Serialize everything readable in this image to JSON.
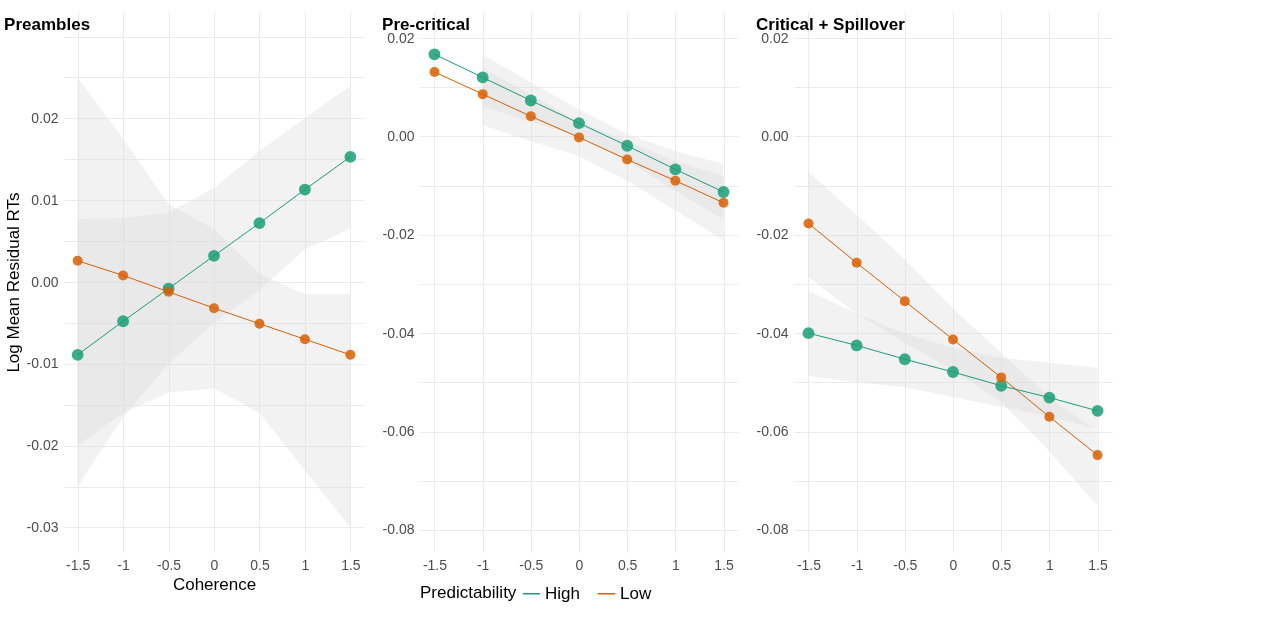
{
  "chart_data": [
    {
      "type": "line",
      "title": "Preambles",
      "xlabel": "Coherence",
      "ylabel": "Log Mean Residual RTs",
      "marker": "circle",
      "grid": true,
      "x": [
        -1.5,
        -1,
        -0.5,
        0,
        0.5,
        1,
        1.5
      ],
      "xlim": [
        -1.65,
        1.65
      ],
      "xticks": [
        -1.5,
        -1,
        -0.5,
        0,
        0.5,
        1,
        1.5
      ],
      "ylim": [
        -0.033,
        0.033
      ],
      "yticks": [
        -0.03,
        {
          "value": -0.025,
          "label": null
        },
        -0.02,
        {
          "value": -0.015,
          "label": null
        },
        -0.01,
        {
          "value": -0.005,
          "label": null
        },
        {
          "value": 0,
          "label": "0.00"
        },
        {
          "value": 0.005,
          "label": null
        },
        0.01,
        {
          "value": 0.015,
          "label": null
        },
        0.02,
        {
          "value": 0.025,
          "label": null
        },
        {
          "value": 0.03,
          "label": null
        }
      ],
      "series": [
        {
          "color": "#1b9e77",
          "values": [
            -0.0089,
            -0.0048,
            -0.0008,
            0.0032,
            0.0072,
            0.0113,
            0.0153
          ],
          "lower": [
            -0.025,
            -0.0165,
            -0.01,
            -0.005,
            -0.001,
            0.004,
            0.0065
          ],
          "upper": [
            0.0077,
            0.0078,
            0.0085,
            0.0115,
            0.016,
            0.02,
            0.024
          ]
        },
        {
          "color": "#d95f02",
          "values": [
            0.0026,
            0.0008,
            -0.0012,
            -0.0032,
            -0.0051,
            -0.007,
            -0.0089
          ],
          "lower": [
            -0.02,
            -0.016,
            -0.0135,
            -0.013,
            -0.016,
            -0.023,
            -0.03
          ],
          "upper": [
            0.025,
            0.0175,
            0.0095,
            0.0065,
            0.001,
            -0.0015,
            -0.0015
          ]
        }
      ]
    },
    {
      "type": "line",
      "title": "Pre-critical",
      "marker": "circle",
      "grid": true,
      "legend": "bottom",
      "legend_title": "Predictability",
      "x": [
        -1.5,
        -1,
        -0.5,
        0,
        0.5,
        1,
        1.5
      ],
      "xlim": [
        -1.65,
        1.65
      ],
      "xticks": [
        -1.5,
        -1,
        -0.5,
        0,
        0.5,
        1,
        1.5
      ],
      "ylim": [
        -0.0845,
        0.0253
      ],
      "yticks": [
        -0.08,
        {
          "value": -0.07,
          "label": null
        },
        -0.06,
        {
          "value": -0.05,
          "label": null
        },
        -0.04,
        {
          "value": -0.03,
          "label": null
        },
        -0.02,
        {
          "value": -0.01,
          "label": null
        },
        {
          "value": 0,
          "label": "0.00"
        },
        {
          "value": 0.01,
          "label": null
        },
        0.02
      ],
      "series": [
        {
          "name": "High",
          "color": "#1b9e77",
          "values": [
            0.0167,
            0.012,
            0.0073,
            0.0027,
            -0.0019,
            -0.0067,
            -0.0113
          ],
          "lower": [
            null,
            0.006,
            0.003,
            0.0,
            -0.005,
            -0.011,
            -0.017
          ],
          "upper": [
            null,
            0.0166,
            0.011,
            0.0055,
            0.0005,
            -0.003,
            -0.0056
          ]
        },
        {
          "name": "Low",
          "color": "#d95f02",
          "values": [
            0.0131,
            0.0086,
            0.0041,
            -0.0002,
            -0.0047,
            -0.009,
            -0.0135
          ],
          "lower": [
            null,
            0.0023,
            -0.001,
            -0.004,
            -0.009,
            -0.015,
            -0.0211
          ],
          "upper": [
            null,
            0.014,
            0.0085,
            0.003,
            -0.001,
            -0.005,
            -0.008
          ]
        }
      ]
    },
    {
      "type": "line",
      "title": "Critical + Spillover",
      "marker": "circle",
      "grid": true,
      "x": [
        -1.5,
        -1,
        -0.5,
        0,
        0.5,
        1,
        1.5
      ],
      "xlim": [
        -1.65,
        1.65
      ],
      "xticks": [
        -1.5,
        -1,
        -0.5,
        0,
        0.5,
        1,
        1.5
      ],
      "ylim": [
        -0.0845,
        0.0253
      ],
      "yticks": [
        -0.08,
        {
          "value": -0.07,
          "label": null
        },
        -0.06,
        {
          "value": -0.05,
          "label": null
        },
        -0.04,
        {
          "value": -0.03,
          "label": null
        },
        -0.02,
        {
          "value": -0.01,
          "label": null
        },
        {
          "value": 0,
          "label": "0.00"
        },
        {
          "value": 0.01,
          "label": null
        },
        0.02
      ],
      "series": [
        {
          "color": "#1b9e77",
          "values": [
            -0.04,
            -0.0425,
            -0.0453,
            -0.0479,
            -0.0507,
            -0.0531,
            -0.0558
          ],
          "lower": [
            -0.0487,
            -0.05,
            -0.051,
            -0.053,
            -0.055,
            -0.057,
            -0.0596
          ],
          "upper": [
            -0.0314,
            -0.036,
            -0.04,
            -0.043,
            -0.045,
            -0.046,
            -0.0471
          ]
        },
        {
          "color": "#d95f02",
          "values": [
            -0.0177,
            -0.0257,
            -0.0335,
            -0.0413,
            -0.049,
            -0.057,
            -0.0648
          ],
          "lower": [
            -0.0287,
            -0.036,
            -0.042,
            -0.0475,
            -0.054,
            -0.064,
            -0.0751
          ],
          "upper": [
            -0.0072,
            -0.016,
            -0.025,
            -0.035,
            -0.044,
            -0.053,
            -0.06
          ]
        }
      ]
    }
  ]
}
